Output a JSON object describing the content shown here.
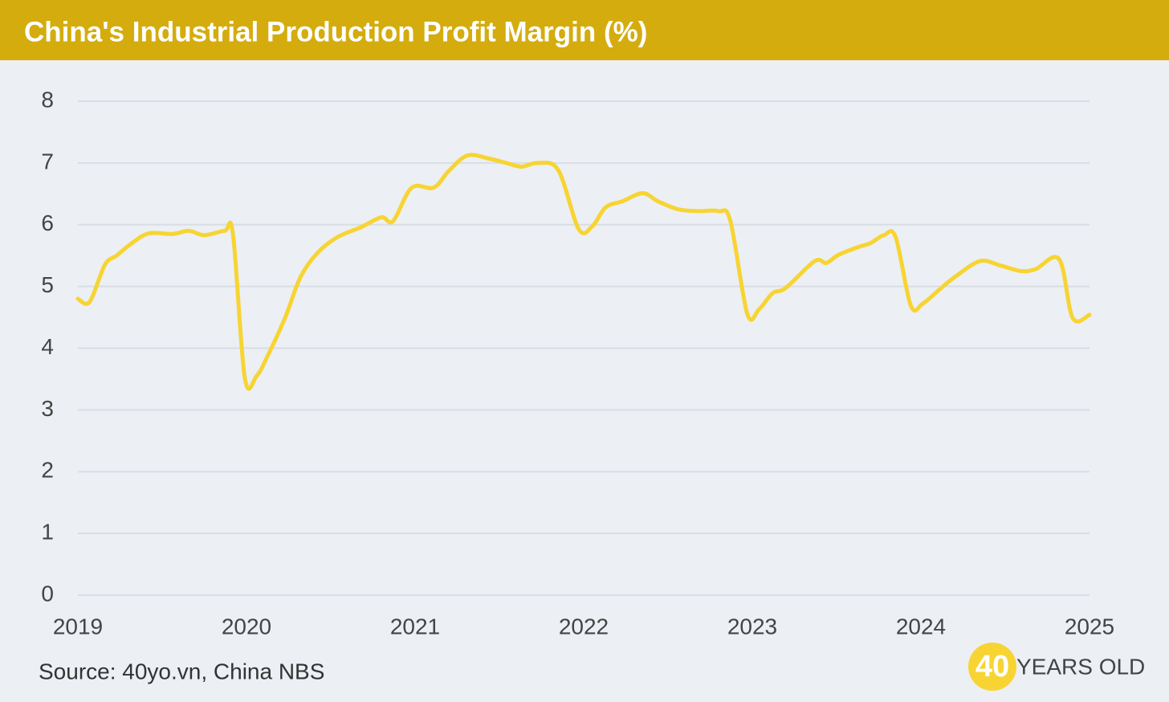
{
  "chart_data": {
    "type": "line",
    "title": "China's Industrial Production Profit Margin (%)",
    "source": "Source: 40yo.vn, China NBS",
    "x": [
      2019.0,
      2019.07,
      2019.16,
      2019.23,
      2019.32,
      2019.42,
      2019.56,
      2019.66,
      2019.75,
      2019.87,
      2019.92,
      2019.99,
      2020.06,
      2020.13,
      2020.23,
      2020.32,
      2020.42,
      2020.54,
      2020.68,
      2020.8,
      2020.87,
      2020.98,
      2021.11,
      2021.2,
      2021.31,
      2021.44,
      2021.54,
      2021.63,
      2021.73,
      2021.85,
      2021.97,
      2022.05,
      2022.13,
      2022.23,
      2022.35,
      2022.44,
      2022.56,
      2022.68,
      2022.8,
      2022.87,
      2022.97,
      2023.04,
      2023.12,
      2023.2,
      2023.37,
      2023.44,
      2023.51,
      2023.63,
      2023.7,
      2023.78,
      2023.85,
      2023.94,
      2024.01,
      2024.11,
      2024.2,
      2024.35,
      2024.47,
      2024.59,
      2024.68,
      2024.82,
      2024.9,
      2025.0
    ],
    "series": [
      {
        "name": "Profit margin",
        "color": "#f7d432",
        "values": [
          4.8,
          4.75,
          5.35,
          5.5,
          5.7,
          5.86,
          5.85,
          5.9,
          5.83,
          5.9,
          5.84,
          3.52,
          3.55,
          3.9,
          4.5,
          5.15,
          5.54,
          5.8,
          5.96,
          6.12,
          6.06,
          6.6,
          6.6,
          6.87,
          7.12,
          7.07,
          7.0,
          6.94,
          7.0,
          6.88,
          5.93,
          5.97,
          6.28,
          6.38,
          6.51,
          6.38,
          6.25,
          6.22,
          6.22,
          6.06,
          4.56,
          4.63,
          4.89,
          4.98,
          5.41,
          5.38,
          5.51,
          5.64,
          5.7,
          5.83,
          5.8,
          4.69,
          4.72,
          4.95,
          5.15,
          5.41,
          5.34,
          5.25,
          5.28,
          5.44,
          4.49,
          4.54
        ]
      }
    ],
    "xlim": [
      2019,
      2025
    ],
    "xticks": [
      2019,
      2020,
      2021,
      2022,
      2023,
      2024,
      2025
    ],
    "ylim": [
      0,
      8
    ],
    "yticks": [
      0,
      1,
      2,
      3,
      4,
      5,
      6,
      7,
      8
    ],
    "grid": true
  },
  "logo": {
    "badge": "40",
    "text": "YEARS OLD"
  }
}
